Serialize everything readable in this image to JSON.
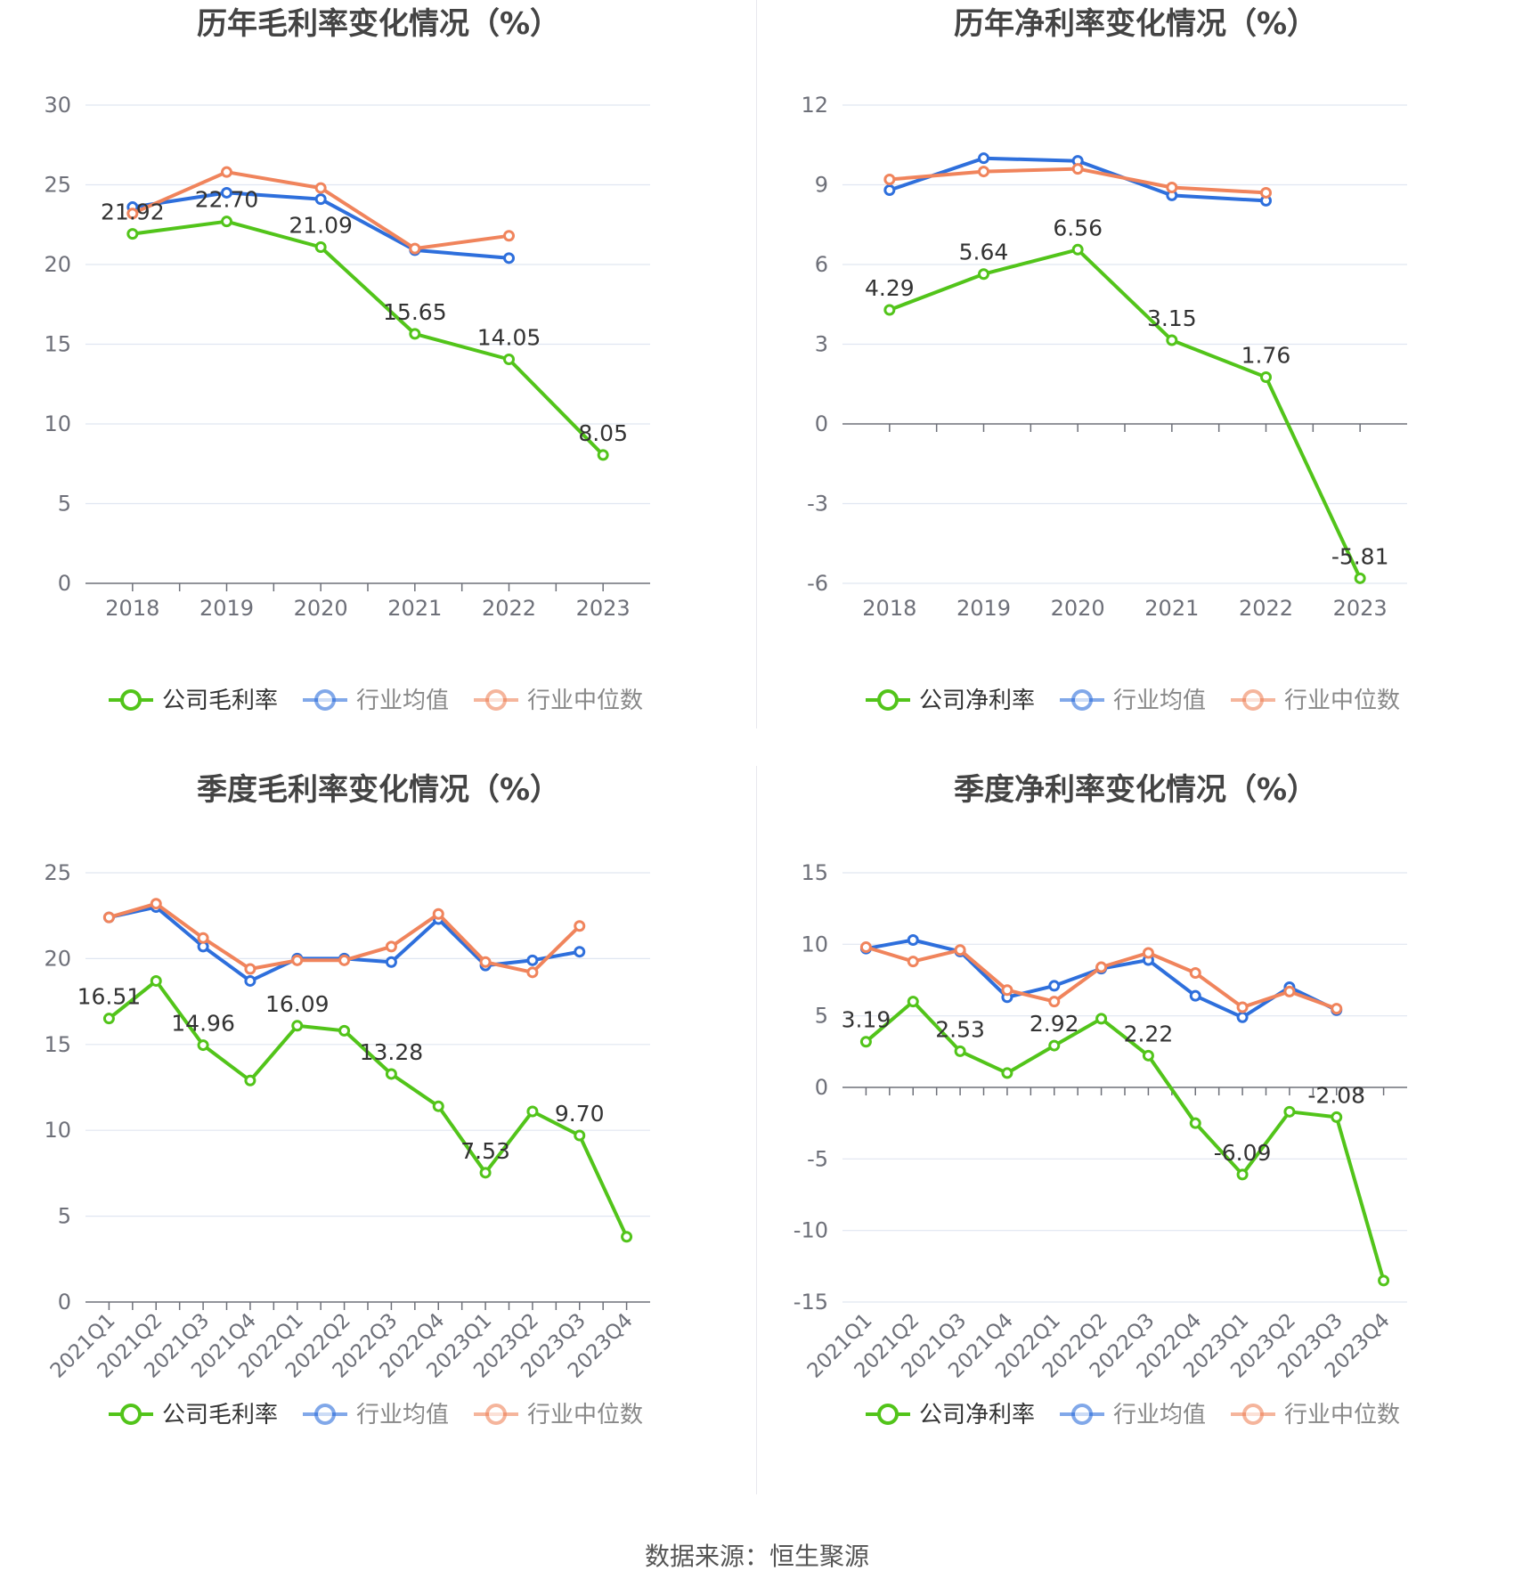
{
  "source": "数据来源：恒生聚源",
  "colors": {
    "company": "#52c41a",
    "avg": "#2e6fdc",
    "median": "#f0845c"
  },
  "chart_data": [
    {
      "type": "line",
      "title": "历年毛利率变化情况（%）",
      "categories": [
        "2018",
        "2019",
        "2020",
        "2021",
        "2022",
        "2023"
      ],
      "ylim": [
        0,
        30
      ],
      "yticks": [
        0,
        5,
        10,
        15,
        20,
        25,
        30
      ],
      "rotate_x": false,
      "series": [
        {
          "name": "公司毛利率",
          "color": "#52c41a",
          "values": [
            21.92,
            22.7,
            21.09,
            15.65,
            14.05,
            8.05
          ],
          "labels": true
        },
        {
          "name": "行业均值",
          "color": "#2e6fdc",
          "values": [
            23.6,
            24.5,
            24.1,
            20.9,
            20.4,
            null
          ]
        },
        {
          "name": "行业中位数",
          "color": "#f0845c",
          "values": [
            23.2,
            25.8,
            24.8,
            21.0,
            21.8,
            null
          ]
        }
      ],
      "legend_position": "bottom"
    },
    {
      "type": "line",
      "title": "历年净利率变化情况（%）",
      "categories": [
        "2018",
        "2019",
        "2020",
        "2021",
        "2022",
        "2023"
      ],
      "ylim": [
        -6,
        12
      ],
      "yticks": [
        -6,
        -3,
        0,
        3,
        6,
        9,
        12
      ],
      "rotate_x": false,
      "series": [
        {
          "name": "公司净利率",
          "color": "#52c41a",
          "values": [
            4.29,
            5.64,
            6.56,
            3.15,
            1.76,
            -5.81
          ],
          "labels": true
        },
        {
          "name": "行业均值",
          "color": "#2e6fdc",
          "values": [
            8.8,
            10.0,
            9.9,
            8.6,
            8.4,
            null
          ]
        },
        {
          "name": "行业中位数",
          "color": "#f0845c",
          "values": [
            9.2,
            9.5,
            9.6,
            8.9,
            8.7,
            null
          ]
        }
      ],
      "legend_position": "bottom"
    },
    {
      "type": "line",
      "title": "季度毛利率变化情况（%）",
      "categories": [
        "2021Q1",
        "2021Q2",
        "2021Q3",
        "2021Q4",
        "2022Q1",
        "2022Q2",
        "2022Q3",
        "2022Q4",
        "2023Q1",
        "2023Q2",
        "2023Q3",
        "2023Q4"
      ],
      "ylim": [
        0,
        25
      ],
      "yticks": [
        0,
        5,
        10,
        15,
        20,
        25
      ],
      "rotate_x": true,
      "series": [
        {
          "name": "公司毛利率",
          "color": "#52c41a",
          "values": [
            16.51,
            18.7,
            14.96,
            12.9,
            16.09,
            15.8,
            13.28,
            11.4,
            7.53,
            11.1,
            9.7,
            3.8
          ],
          "labeled": [
            0,
            2,
            4,
            6,
            8,
            10
          ]
        },
        {
          "name": "行业均值",
          "color": "#2e6fdc",
          "values": [
            22.4,
            23.0,
            20.7,
            18.7,
            20.0,
            20.0,
            19.8,
            22.3,
            19.6,
            19.9,
            20.4,
            null
          ]
        },
        {
          "name": "行业中位数",
          "color": "#f0845c",
          "values": [
            22.4,
            23.2,
            21.2,
            19.4,
            19.9,
            19.9,
            20.7,
            22.6,
            19.8,
            19.2,
            21.9,
            null
          ]
        }
      ],
      "legend_position": "bottom"
    },
    {
      "type": "line",
      "title": "季度净利率变化情况（%）",
      "categories": [
        "2021Q1",
        "2021Q2",
        "2021Q3",
        "2021Q4",
        "2022Q1",
        "2022Q2",
        "2022Q3",
        "2022Q4",
        "2023Q1",
        "2023Q2",
        "2023Q3",
        "2023Q4"
      ],
      "ylim": [
        -15,
        15
      ],
      "yticks": [
        -15,
        -10,
        -5,
        0,
        5,
        10,
        15
      ],
      "rotate_x": true,
      "series": [
        {
          "name": "公司净利率",
          "color": "#52c41a",
          "values": [
            3.19,
            6.0,
            2.53,
            1.0,
            2.92,
            4.8,
            2.22,
            -2.5,
            -6.09,
            -1.7,
            -2.08,
            -13.5
          ],
          "labeled": [
            0,
            2,
            4,
            6,
            8,
            10
          ]
        },
        {
          "name": "行业均值",
          "color": "#2e6fdc",
          "values": [
            9.7,
            10.3,
            9.5,
            6.3,
            7.1,
            8.3,
            8.9,
            6.4,
            4.9,
            7.0,
            5.4,
            null
          ]
        },
        {
          "name": "行业中位数",
          "color": "#f0845c",
          "values": [
            9.8,
            8.8,
            9.6,
            6.8,
            6.0,
            8.4,
            9.4,
            8.0,
            5.6,
            6.7,
            5.5,
            null
          ]
        }
      ],
      "legend_position": "bottom"
    }
  ]
}
